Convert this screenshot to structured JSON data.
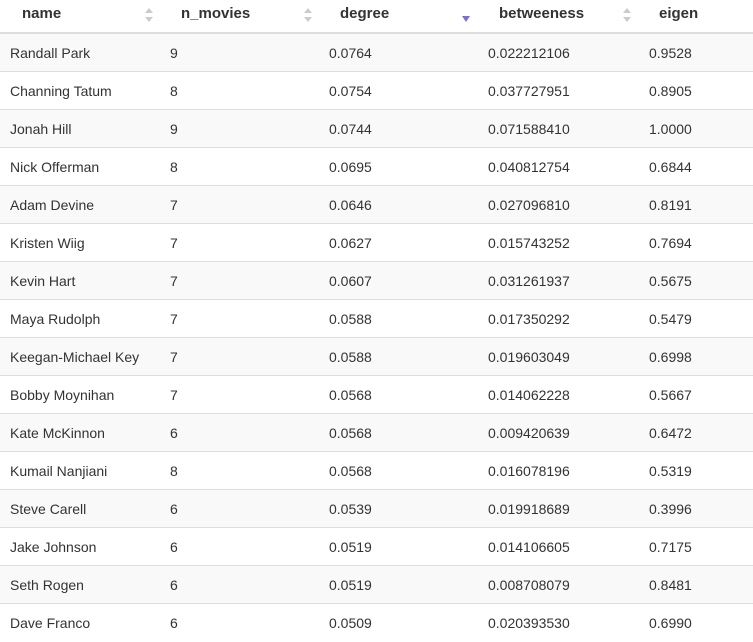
{
  "columns": [
    {
      "key": "name",
      "label": "name",
      "sort": "none"
    },
    {
      "key": "n_movies",
      "label": "n_movies",
      "sort": "none"
    },
    {
      "key": "degree",
      "label": "degree",
      "sort": "descending"
    },
    {
      "key": "betweeness",
      "label": "betweeness",
      "sort": "none"
    },
    {
      "key": "eigen",
      "label": "eigen",
      "sort": "none"
    }
  ],
  "colors": {
    "sort_inactive": "#cccccc",
    "sort_active": "#7b6fd6",
    "row_stripe": "#f9f9f9",
    "border": "#dddddd"
  },
  "icons": {
    "sort_inactive": "sort-updown-icon",
    "sort_active": "sort-desc-icon"
  },
  "rows": [
    {
      "name": "Randall Park",
      "n_movies": "9",
      "degree": "0.0764",
      "betweeness": "0.022212106",
      "eigen": "0.9528"
    },
    {
      "name": "Channing Tatum",
      "n_movies": "8",
      "degree": "0.0754",
      "betweeness": "0.037727951",
      "eigen": "0.8905"
    },
    {
      "name": "Jonah Hill",
      "n_movies": "9",
      "degree": "0.0744",
      "betweeness": "0.071588410",
      "eigen": "1.0000"
    },
    {
      "name": "Nick Offerman",
      "n_movies": "8",
      "degree": "0.0695",
      "betweeness": "0.040812754",
      "eigen": "0.6844"
    },
    {
      "name": "Adam Devine",
      "n_movies": "7",
      "degree": "0.0646",
      "betweeness": "0.027096810",
      "eigen": "0.8191"
    },
    {
      "name": "Kristen Wiig",
      "n_movies": "7",
      "degree": "0.0627",
      "betweeness": "0.015743252",
      "eigen": "0.7694"
    },
    {
      "name": "Kevin Hart",
      "n_movies": "7",
      "degree": "0.0607",
      "betweeness": "0.031261937",
      "eigen": "0.5675"
    },
    {
      "name": "Maya Rudolph",
      "n_movies": "7",
      "degree": "0.0588",
      "betweeness": "0.017350292",
      "eigen": "0.5479"
    },
    {
      "name": "Keegan-Michael Key",
      "n_movies": "7",
      "degree": "0.0588",
      "betweeness": "0.019603049",
      "eigen": "0.6998"
    },
    {
      "name": "Bobby Moynihan",
      "n_movies": "7",
      "degree": "0.0568",
      "betweeness": "0.014062228",
      "eigen": "0.5667"
    },
    {
      "name": "Kate McKinnon",
      "n_movies": "6",
      "degree": "0.0568",
      "betweeness": "0.009420639",
      "eigen": "0.6472"
    },
    {
      "name": "Kumail Nanjiani",
      "n_movies": "8",
      "degree": "0.0568",
      "betweeness": "0.016078196",
      "eigen": "0.5319"
    },
    {
      "name": "Steve Carell",
      "n_movies": "6",
      "degree": "0.0539",
      "betweeness": "0.019918689",
      "eigen": "0.3996"
    },
    {
      "name": "Jake Johnson",
      "n_movies": "6",
      "degree": "0.0519",
      "betweeness": "0.014106605",
      "eigen": "0.7175"
    },
    {
      "name": "Seth Rogen",
      "n_movies": "6",
      "degree": "0.0519",
      "betweeness": "0.008708079",
      "eigen": "0.8481"
    },
    {
      "name": "Dave Franco",
      "n_movies": "6",
      "degree": "0.0509",
      "betweeness": "0.020393530",
      "eigen": "0.6990"
    }
  ]
}
